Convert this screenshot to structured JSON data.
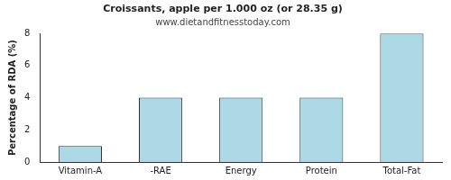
{
  "chart_data": {
    "type": "bar",
    "title": "Croissants, apple per 1.000 oz (or 28.35 g)",
    "subtitle": "www.dietandfitnesstoday.com",
    "y_label": "Percentage of RDA (%)",
    "categories": [
      "Vitamin-A",
      "-RAE",
      "Energy",
      "Protein",
      "Total-Fat"
    ],
    "values": [
      1,
      4,
      4,
      4,
      8
    ],
    "color": "#add8e6",
    "ylim": [
      0,
      8
    ],
    "yticks": [
      0,
      2,
      4,
      6,
      8
    ],
    "grid": false
  }
}
